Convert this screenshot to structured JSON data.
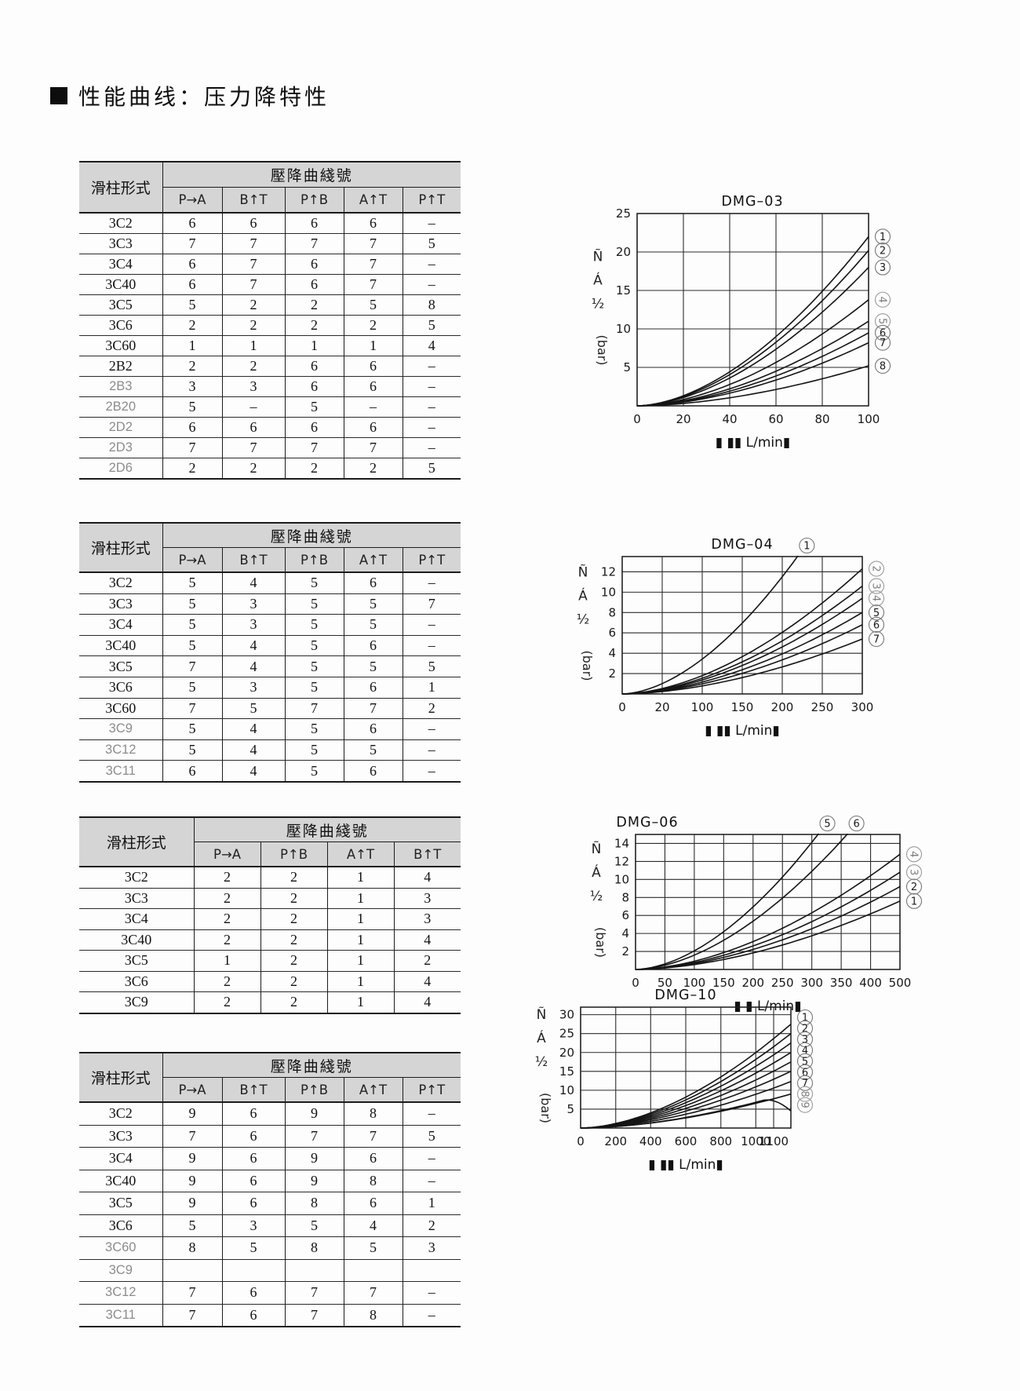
{
  "page": {
    "title_marker": "■",
    "title": "性能曲线：压力降特性"
  },
  "tables": [
    {
      "name": "dmg03-curve-table",
      "corner": "滑柱形式",
      "group": "壓降曲綫號",
      "cols": [
        "P→A",
        "B↑T",
        "P↑B",
        "A↑T",
        "P↑T"
      ],
      "rows": [
        {
          "model": "3C2",
          "light": false,
          "vals": [
            "6",
            "6",
            "6",
            "6",
            "–"
          ]
        },
        {
          "model": "3C3",
          "light": false,
          "vals": [
            "7",
            "7",
            "7",
            "7",
            "5"
          ]
        },
        {
          "model": "3C4",
          "light": false,
          "vals": [
            "6",
            "7",
            "6",
            "7",
            "–"
          ]
        },
        {
          "model": "3C40",
          "light": false,
          "vals": [
            "6",
            "7",
            "6",
            "7",
            "–"
          ]
        },
        {
          "model": "3C5",
          "light": false,
          "vals": [
            "5",
            "2",
            "2",
            "5",
            "8"
          ]
        },
        {
          "model": "3C6",
          "light": false,
          "vals": [
            "2",
            "2",
            "2",
            "2",
            "5"
          ]
        },
        {
          "model": "3C60",
          "light": false,
          "vals": [
            "1",
            "1",
            "1",
            "1",
            "4"
          ]
        },
        {
          "model": "2B2",
          "light": false,
          "vals": [
            "2",
            "2",
            "6",
            "6",
            "–"
          ]
        },
        {
          "model": "2B3",
          "light": true,
          "vals": [
            "3",
            "3",
            "6",
            "6",
            "–"
          ]
        },
        {
          "model": "2B20",
          "light": true,
          "vals": [
            "5",
            "–",
            "5",
            "–",
            "–"
          ]
        },
        {
          "model": "2D2",
          "light": true,
          "vals": [
            "6",
            "6",
            "6",
            "6",
            "–"
          ]
        },
        {
          "model": "2D3",
          "light": true,
          "vals": [
            "7",
            "7",
            "7",
            "7",
            "–"
          ]
        },
        {
          "model": "2D6",
          "light": true,
          "vals": [
            "2",
            "2",
            "2",
            "2",
            "5"
          ]
        }
      ]
    },
    {
      "name": "dmg04-curve-table",
      "corner": "滑柱形式",
      "group": "壓降曲綫號",
      "cols": [
        "P→A",
        "B↑T",
        "P↑B",
        "A↑T",
        "P↑T"
      ],
      "rows": [
        {
          "model": "3C2",
          "light": false,
          "vals": [
            "5",
            "4",
            "5",
            "6",
            "–"
          ]
        },
        {
          "model": "3C3",
          "light": false,
          "vals": [
            "5",
            "3",
            "5",
            "5",
            "7"
          ]
        },
        {
          "model": "3C4",
          "light": false,
          "vals": [
            "5",
            "3",
            "5",
            "5",
            "–"
          ]
        },
        {
          "model": "3C40",
          "light": false,
          "vals": [
            "5",
            "4",
            "5",
            "6",
            "–"
          ]
        },
        {
          "model": "3C5",
          "light": false,
          "vals": [
            "7",
            "4",
            "5",
            "5",
            "5"
          ]
        },
        {
          "model": "3C6",
          "light": false,
          "vals": [
            "5",
            "3",
            "5",
            "6",
            "1"
          ]
        },
        {
          "model": "3C60",
          "light": false,
          "vals": [
            "7",
            "5",
            "7",
            "7",
            "2"
          ]
        },
        {
          "model": "3C9",
          "light": true,
          "vals": [
            "5",
            "4",
            "5",
            "6",
            "–"
          ]
        },
        {
          "model": "3C12",
          "light": true,
          "vals": [
            "5",
            "4",
            "5",
            "5",
            "–"
          ]
        },
        {
          "model": "3C11",
          "light": true,
          "vals": [
            "6",
            "4",
            "5",
            "6",
            "–"
          ]
        }
      ]
    },
    {
      "name": "dmg06-curve-table",
      "corner": "滑柱形式",
      "group": "壓降曲綫號",
      "cols": [
        "P→A",
        "P↑B",
        "A↑T",
        "B↑T"
      ],
      "rows": [
        {
          "model": "3C2",
          "light": false,
          "vals": [
            "2",
            "2",
            "1",
            "4"
          ]
        },
        {
          "model": "3C3",
          "light": false,
          "vals": [
            "2",
            "2",
            "1",
            "3"
          ]
        },
        {
          "model": "3C4",
          "light": false,
          "vals": [
            "2",
            "2",
            "1",
            "3"
          ]
        },
        {
          "model": "3C40",
          "light": false,
          "vals": [
            "2",
            "2",
            "1",
            "4"
          ]
        },
        {
          "model": "3C5",
          "light": false,
          "vals": [
            "1",
            "2",
            "1",
            "2"
          ]
        },
        {
          "model": "3C6",
          "light": false,
          "vals": [
            "2",
            "2",
            "1",
            "4"
          ]
        },
        {
          "model": "3C9",
          "light": false,
          "vals": [
            "2",
            "2",
            "1",
            "4"
          ]
        }
      ]
    },
    {
      "name": "dmg10-curve-table",
      "corner": "滑柱形式",
      "group": "壓降曲綫號",
      "cols": [
        "P→A",
        "B↑T",
        "P↑B",
        "A↑T",
        "P↑T"
      ],
      "rows": [
        {
          "model": "3C2",
          "light": false,
          "vals": [
            "9",
            "6",
            "9",
            "8",
            "–"
          ]
        },
        {
          "model": "3C3",
          "light": false,
          "vals": [
            "7",
            "6",
            "7",
            "7",
            "5"
          ]
        },
        {
          "model": "3C4",
          "light": false,
          "vals": [
            "9",
            "6",
            "9",
            "6",
            "–"
          ]
        },
        {
          "model": "3C40",
          "light": false,
          "vals": [
            "9",
            "6",
            "9",
            "8",
            "–"
          ]
        },
        {
          "model": "3C5",
          "light": false,
          "vals": [
            "9",
            "6",
            "8",
            "6",
            "1"
          ]
        },
        {
          "model": "3C6",
          "light": false,
          "vals": [
            "5",
            "3",
            "5",
            "4",
            "2"
          ]
        },
        {
          "model": "3C60",
          "light": true,
          "vals": [
            "8",
            "5",
            "8",
            "5",
            "3"
          ]
        },
        {
          "model": "3C9",
          "light": true,
          "vals": [
            "",
            "",
            "",
            "",
            ""
          ]
        },
        {
          "model": "3C12",
          "light": true,
          "vals": [
            "7",
            "6",
            "7",
            "7",
            "–"
          ]
        },
        {
          "model": "3C11",
          "light": true,
          "vals": [
            "7",
            "6",
            "7",
            "8",
            "–"
          ]
        }
      ]
    }
  ],
  "chart_data": [
    {
      "type": "line",
      "title": "DMG–03",
      "ylabel": "Ñ Á ½ (bar)",
      "xlabel": "▮ ▮▮ L/min▮",
      "xticks": [
        "0",
        "20",
        "40",
        "60",
        "80",
        "100"
      ],
      "yticks": [
        5,
        10,
        15,
        20,
        25
      ],
      "ymax_top": 25,
      "xmax": 100,
      "legend_position": "right",
      "grid": true,
      "curves": [
        {
          "label": "1",
          "end_bar": 22.0,
          "muted": false
        },
        {
          "label": "2",
          "end_bar": 20.2,
          "muted": false
        },
        {
          "label": "3",
          "end_bar": 18.0,
          "muted": false
        },
        {
          "label": "4",
          "end_bar": 13.8,
          "muted": true
        },
        {
          "label": "5",
          "end_bar": 11.0,
          "muted": true
        },
        {
          "label": "6",
          "end_bar": 9.5,
          "muted": false
        },
        {
          "label": "7",
          "end_bar": 8.2,
          "muted": false
        },
        {
          "label": "8",
          "end_bar": 5.2,
          "muted": false
        }
      ]
    },
    {
      "type": "line",
      "title": "DMG–04",
      "ylabel": "Ñ Á ½ (bar)",
      "xlabel": "▮ ▮▮ L/min▮",
      "xticks": [
        "0",
        "20",
        "100",
        "150",
        "200",
        "250",
        "300"
      ],
      "yticks": [
        2,
        4,
        6,
        8,
        10,
        12
      ],
      "ymax_top": 13.5,
      "xmax": 300,
      "legend_position": "right",
      "grid": true,
      "curves": [
        {
          "label": "1",
          "exit": "top",
          "exit_frac": 0.73,
          "muted": false
        },
        {
          "label": "2",
          "end_bar": 12.3,
          "muted": true
        },
        {
          "label": "3",
          "end_bar": 10.6,
          "muted": true
        },
        {
          "label": "4",
          "end_bar": 9.4,
          "muted": true
        },
        {
          "label": "5",
          "end_bar": 8.0,
          "muted": false
        },
        {
          "label": "6",
          "end_bar": 6.8,
          "muted": false
        },
        {
          "label": "7",
          "end_bar": 5.4,
          "muted": false
        }
      ]
    },
    {
      "type": "line",
      "title": "DMG–06",
      "ylabel": "Ñ Á ½ (bar)",
      "xlabel": "▮ ▮ L/min▮",
      "xticks": [
        "0",
        "50",
        "100",
        "150",
        "200",
        "250",
        "300",
        "350",
        "400",
        "500"
      ],
      "yticks": [
        2,
        4,
        6,
        8,
        10,
        12,
        14
      ],
      "ymax_top": 15,
      "xmax": 500,
      "legend_position": "right",
      "grid": true,
      "curves": [
        {
          "label": "5",
          "exit": "top",
          "exit_frac": 0.69,
          "muted": false
        },
        {
          "label": "6",
          "exit": "top",
          "exit_frac": 0.8,
          "muted": false
        },
        {
          "label": "4",
          "end_bar": 12.8,
          "muted": true
        },
        {
          "label": "3",
          "end_bar": 10.8,
          "muted": true
        },
        {
          "label": "2",
          "end_bar": 9.2,
          "muted": false
        },
        {
          "label": "1",
          "end_bar": 7.6,
          "muted": false
        }
      ]
    },
    {
      "type": "line",
      "title": "DMG–10",
      "ylabel": "Ñ Á ½ (bar)",
      "xlabel": "▮ ▮▮ L/min▮",
      "xticks": [
        "0",
        "200",
        "400",
        "600",
        "800",
        "1000",
        "1100"
      ],
      "yticks": [
        5,
        10,
        15,
        20,
        25,
        30
      ],
      "ymax_top": 32,
      "xmax": 1170,
      "legend_position": "right",
      "grid": true,
      "curves": [
        {
          "label": "1",
          "end_bar": 27.5,
          "label_bar": 29.3,
          "muted": false
        },
        {
          "label": "2",
          "end_bar": 25.0,
          "label_bar": 26.4,
          "muted": false
        },
        {
          "label": "3",
          "end_bar": 22.5,
          "label_bar": 23.5,
          "muted": false
        },
        {
          "label": "4",
          "end_bar": 20.0,
          "label_bar": 20.6,
          "muted": false
        },
        {
          "label": "5",
          "end_bar": 17.5,
          "label_bar": 17.7,
          "muted": false
        },
        {
          "label": "6",
          "end_bar": 15.0,
          "label_bar": 14.8,
          "muted": false
        },
        {
          "label": "7",
          "end_bar": 12.3,
          "label_bar": 11.9,
          "muted": false
        },
        {
          "label": "8",
          "end_bar": 9.0,
          "label_bar": 9.0,
          "muted": true
        },
        {
          "label": "9",
          "end_bar": 4.5,
          "hook_peak": 7.5,
          "hook_t": 0.88,
          "label_bar": 6.1,
          "muted": true
        }
      ]
    }
  ]
}
